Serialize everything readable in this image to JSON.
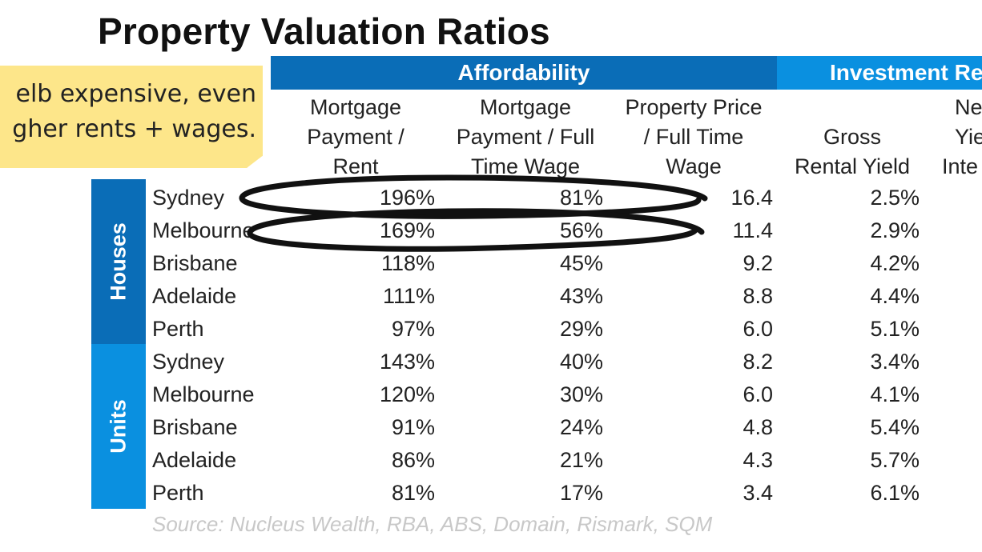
{
  "title": "Property Valuation Ratios",
  "groups": {
    "affordability": "Affordability",
    "investment": "Investment Re"
  },
  "columns": [
    [
      "Mortgage",
      "Payment /",
      "Rent"
    ],
    [
      "Mortgage",
      "Payment / Full",
      "Time Wage"
    ],
    [
      "Property Price",
      "/ Full Time",
      "Wage"
    ],
    [
      "",
      "Gross",
      "Rental Yield"
    ],
    [
      "Ne",
      "Yie",
      "Inte"
    ]
  ],
  "segments": {
    "houses": "Houses",
    "units": "Units"
  },
  "rows": [
    {
      "city": "Sydney",
      "v1": "196%",
      "v2": "81%",
      "v3": "16.4",
      "v4": "2.5%"
    },
    {
      "city": "Melbourne",
      "v1": "169%",
      "v2": "56%",
      "v3": "11.4",
      "v4": "2.9%"
    },
    {
      "city": "Brisbane",
      "v1": "118%",
      "v2": "45%",
      "v3": "9.2",
      "v4": "4.2%"
    },
    {
      "city": "Adelaide",
      "v1": "111%",
      "v2": "43%",
      "v3": "8.8",
      "v4": "4.4%"
    },
    {
      "city": "Perth",
      "v1": "97%",
      "v2": "29%",
      "v3": "6.0",
      "v4": "5.1%"
    },
    {
      "city": "Sydney",
      "v1": "143%",
      "v2": "40%",
      "v3": "8.2",
      "v4": "3.4%"
    },
    {
      "city": "Melbourne",
      "v1": "120%",
      "v2": "30%",
      "v3": "6.0",
      "v4": "4.1%"
    },
    {
      "city": "Brisbane",
      "v1": "91%",
      "v2": "24%",
      "v3": "4.8",
      "v4": "5.4%"
    },
    {
      "city": "Adelaide",
      "v1": "86%",
      "v2": "21%",
      "v3": "4.3",
      "v4": "5.7%"
    },
    {
      "city": "Perth",
      "v1": "81%",
      "v2": "17%",
      "v3": "3.4",
      "v4": "6.1%"
    }
  ],
  "source": "Source: Nucleus Wealth, RBA, ABS, Domain, Rismark, SQM",
  "note": [
    "elb expensive, even",
    "gher rents + wages."
  ],
  "colors": {
    "header_dark": "#0a6db7",
    "header_light": "#0a90e0",
    "note_bg": "#fde68a",
    "source_text": "#c8c8c8"
  }
}
